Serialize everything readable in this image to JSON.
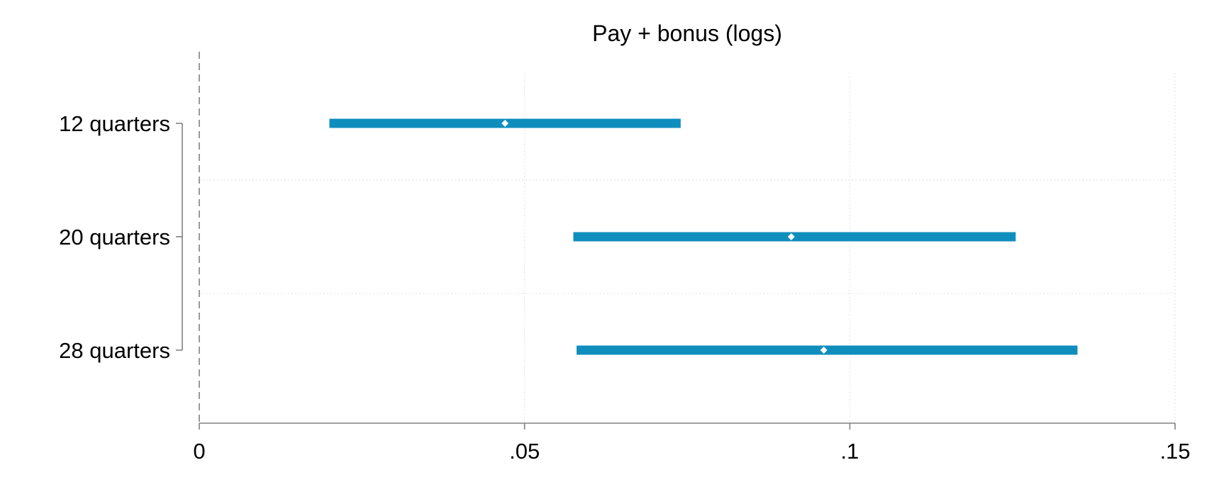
{
  "chart_data": {
    "type": "coefficient_plot",
    "title": "Pay + bonus (logs)",
    "xlabel": "",
    "ylabel": "",
    "xlim": [
      0,
      0.15
    ],
    "x_ticks": [
      0,
      0.05,
      0.1,
      0.15
    ],
    "x_tick_labels": [
      "0",
      ".05",
      ".1",
      ".15"
    ],
    "categories": [
      "12 quarters",
      "20 quarters",
      "28 quarters"
    ],
    "estimates": [
      0.047,
      0.091,
      0.096
    ],
    "ci_low": [
      0.02,
      0.0575,
      0.058
    ],
    "ci_high": [
      0.074,
      0.1255,
      0.135
    ],
    "reference_line_x": 0,
    "grid": true,
    "colors": {
      "bar": "#0f8ebd",
      "marker": "#ffffff",
      "axis": "#808080",
      "grid": "#e6e6e6"
    }
  }
}
